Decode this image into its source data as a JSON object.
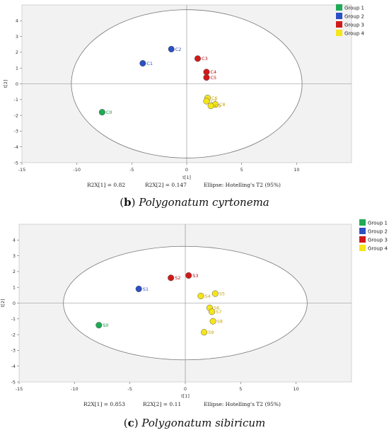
{
  "colors": {
    "Group 1": "#1faa55",
    "Group 2": "#2b4fc4",
    "Group 3": "#d01a1a",
    "Group 4": "#f5e51a",
    "label_Group 1": "#1a8a44",
    "label_Group 2": "#2b4fc4",
    "label_Group 3": "#b01010",
    "label_Group 4": "#c9a40c",
    "plot_bg": "#f2f2f2",
    "axis": "#888888"
  },
  "chart_data": [
    {
      "type": "scatter",
      "caption": {
        "letter": "b",
        "name": "Polygonatum cyrtonema"
      },
      "xlabel": "t[1]",
      "ylabel": "t[2]",
      "xlim": [
        -15,
        15
      ],
      "ylim": [
        -5,
        5
      ],
      "xticks": [
        -15,
        -10,
        -5,
        0,
        5,
        10
      ],
      "yticks": [
        -5,
        -4,
        -3,
        -2,
        -1,
        0,
        1,
        2,
        3,
        4
      ],
      "ellipse": {
        "cx": 0,
        "cy": 0,
        "rx": 10.5,
        "ry": 4.7
      },
      "legend": [
        "Group 1",
        "Group 2",
        "Group 3",
        "Group 4"
      ],
      "legend_position": "top-right",
      "stats": [
        "R2X[1] = 0.82",
        "R2X[2] = 0.147",
        "Ellipse: Hotelling's T2 (95%)"
      ],
      "points": [
        {
          "label": "C0",
          "group": "Group 1",
          "x": -7.7,
          "y": -1.8
        },
        {
          "label": "C1",
          "group": "Group 2",
          "x": -4.0,
          "y": 1.3
        },
        {
          "label": "C2",
          "group": "Group 2",
          "x": -1.4,
          "y": 2.2
        },
        {
          "label": "C3",
          "group": "Group 3",
          "x": 1.0,
          "y": 1.6
        },
        {
          "label": "C4",
          "group": "Group 3",
          "x": 1.8,
          "y": 0.75
        },
        {
          "label": "C5",
          "group": "Group 3",
          "x": 1.8,
          "y": 0.4
        },
        {
          "label": "C6",
          "group": "Group 4",
          "x": 1.9,
          "y": -0.9
        },
        {
          "label": "C7",
          "group": "Group 4",
          "x": 1.8,
          "y": -1.1
        },
        {
          "label": "C8",
          "group": "Group 4",
          "x": 2.6,
          "y": -1.3
        },
        {
          "label": "C9",
          "group": "Group 4",
          "x": 2.2,
          "y": -1.4
        }
      ]
    },
    {
      "type": "scatter",
      "caption": {
        "letter": "c",
        "name": "Polygonatum sibiricum"
      },
      "xlabel": "t[1]",
      "ylabel": "t[2]",
      "xlim": [
        -15,
        15
      ],
      "ylim": [
        -5,
        5
      ],
      "xticks": [
        -15,
        -10,
        -5,
        0,
        5,
        10
      ],
      "yticks": [
        -5,
        -4,
        -3,
        -2,
        -1,
        0,
        1,
        2,
        3,
        4
      ],
      "ellipse": {
        "cx": 0,
        "cy": 0,
        "rx": 11.0,
        "ry": 3.6
      },
      "legend": [
        "Group 1",
        "Group 2",
        "Group 3",
        "Group 4"
      ],
      "legend_position": "top-right",
      "stats": [
        "R2X[1] = 0.853",
        "R2X[2] = 0.11",
        "Ellipse: Hotelling's T2 (95%)"
      ],
      "points": [
        {
          "label": "S0",
          "group": "Group 1",
          "x": -7.8,
          "y": -1.4
        },
        {
          "label": "S1",
          "group": "Group 2",
          "x": -4.2,
          "y": 0.9
        },
        {
          "label": "S2",
          "group": "Group 3",
          "x": -1.3,
          "y": 1.6
        },
        {
          "label": "S3",
          "group": "Group 3",
          "x": 0.3,
          "y": 1.75
        },
        {
          "label": "S4",
          "group": "Group 4",
          "x": 1.4,
          "y": 0.45
        },
        {
          "label": "S5",
          "group": "Group 4",
          "x": 2.7,
          "y": 0.6
        },
        {
          "label": "S6",
          "group": "Group 4",
          "x": 2.2,
          "y": -0.3
        },
        {
          "label": "S7",
          "group": "Group 4",
          "x": 2.4,
          "y": -0.55
        },
        {
          "label": "S8",
          "group": "Group 4",
          "x": 2.5,
          "y": -1.15
        },
        {
          "label": "S9",
          "group": "Group 4",
          "x": 1.7,
          "y": -1.85
        }
      ]
    }
  ]
}
